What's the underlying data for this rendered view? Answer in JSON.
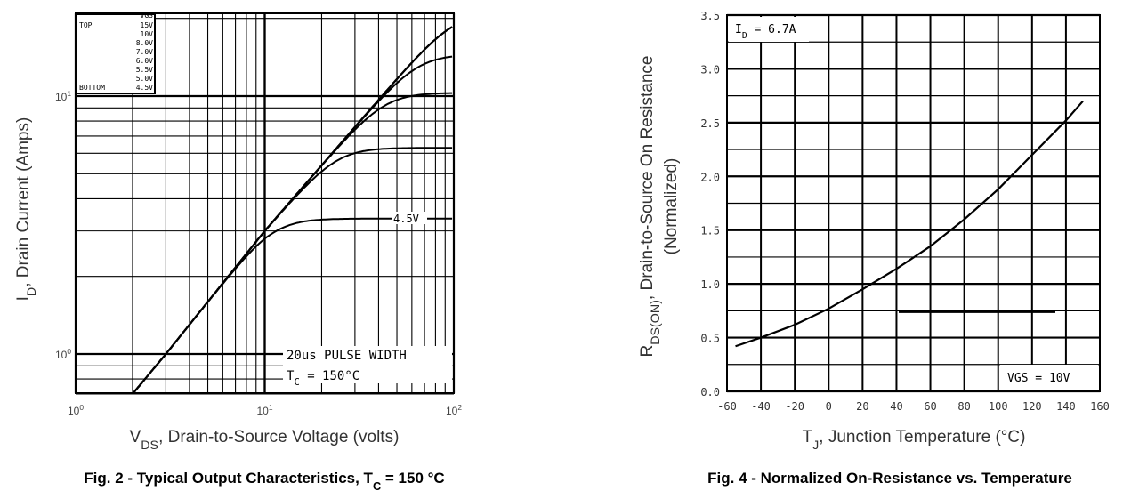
{
  "chart_data": [
    {
      "type": "line",
      "title": "Fig. 2 - Typical Output Characteristics, T",
      "title_sub": "C",
      "title_tail": " = 150 °C",
      "xlabel": "V",
      "xlabel_sub": "DS",
      "xlabel_tail": ", Drain-to-Source Voltage (volts)",
      "ylabel": "I",
      "ylabel_sub": "D",
      "ylabel_tail": ", Drain Current (Amps)",
      "xscale": "log",
      "yscale": "log",
      "xlim": [
        1,
        100
      ],
      "ylim": [
        0.7,
        21
      ],
      "xticks": [
        {
          "base": "10",
          "exp": "0",
          "v": 1
        },
        {
          "base": "10",
          "exp": "1",
          "v": 10
        },
        {
          "base": "10",
          "exp": "2",
          "v": 100
        }
      ],
      "yticks": [
        {
          "base": "10",
          "exp": "0",
          "v": 1
        },
        {
          "base": "10",
          "exp": "1",
          "v": 10
        }
      ],
      "legend": {
        "header": "VGS",
        "top": "TOP",
        "bottom": "BOTTOM",
        "entries": [
          "15V",
          "10V",
          "8.0V",
          "7.0V",
          "6.0V",
          "5.5V",
          "5.0V",
          "4.5V"
        ],
        "placement": "top-left"
      },
      "annotations": {
        "pulse": "20us PULSE WIDTH",
        "tc": "T",
        "tc_sub": "C",
        "tc_tail": " = 150°C",
        "curve_label": "4.5V"
      },
      "series": [
        {
          "name": "15V",
          "sat": 21
        },
        {
          "name": "10V",
          "sat": 21
        },
        {
          "name": "8.0V",
          "sat": 21
        },
        {
          "name": "7.0V",
          "sat": 21
        },
        {
          "name": "6.0V",
          "sat": 14.5
        },
        {
          "name": "5.5V",
          "sat": 10.3
        },
        {
          "name": "5.0V",
          "sat": 6.3
        },
        {
          "name": "4.5V",
          "sat": 3.35
        }
      ],
      "linear_region": {
        "x": [
          2,
          3,
          10,
          100
        ],
        "y": [
          0.7,
          1.0,
          3.0,
          21
        ]
      }
    },
    {
      "type": "line",
      "title": "Fig. 4 - Normalized On-Resistance vs. Temperature",
      "xlabel": "T",
      "xlabel_sub": "J",
      "xlabel_tail": ", Junction Temperature (°C)",
      "ylabel": "R",
      "ylabel_sub": "DS(ON)",
      "ylabel_tail": ", Drain-to-Source On Resistance",
      "ylabel2": "(Normalized)",
      "xlim": [
        -60,
        160
      ],
      "ylim": [
        0,
        3.5
      ],
      "xticks": [
        "-60",
        "-40",
        "-20",
        "0",
        "20",
        "40",
        "60",
        "80",
        "100",
        "120",
        "140",
        "160"
      ],
      "yticks": [
        "0.0",
        "0.5",
        "1.0",
        "1.5",
        "2.0",
        "2.5",
        "3.0",
        "3.5"
      ],
      "annotations": {
        "id": "I",
        "id_sub": "D",
        "id_tail": " = 6.7A",
        "vgs": "VGS = 10V"
      },
      "series": [
        {
          "name": "RDS(on)",
          "x": [
            -55,
            -40,
            -20,
            0,
            20,
            40,
            60,
            80,
            100,
            120,
            140,
            150
          ],
          "y": [
            0.42,
            0.5,
            0.62,
            0.77,
            0.95,
            1.14,
            1.35,
            1.6,
            1.88,
            2.2,
            2.52,
            2.7
          ]
        }
      ]
    }
  ]
}
